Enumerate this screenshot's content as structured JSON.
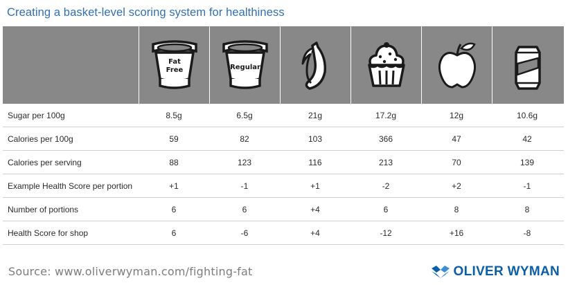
{
  "title": "Creating a basket-level scoring system for healthiness",
  "header": {
    "items": [
      {
        "icon": "fat-free-yogurt-icon",
        "text_line1": "Fat",
        "text_line2": "Free"
      },
      {
        "icon": "regular-yogurt-icon",
        "text": "Regular"
      },
      {
        "icon": "banana-icon"
      },
      {
        "icon": "cupcake-icon"
      },
      {
        "icon": "apple-icon"
      },
      {
        "icon": "soda-can-icon"
      }
    ]
  },
  "rows": [
    {
      "label": "Sugar per 100g",
      "values": [
        "8.5g",
        "6.5g",
        "21g",
        "17.2g",
        "12g",
        "10.6g"
      ]
    },
    {
      "label": "Calories per 100g",
      "values": [
        "59",
        "82",
        "103",
        "366",
        "47",
        "42"
      ]
    },
    {
      "label": "Calories per serving",
      "values": [
        "88",
        "123",
        "116",
        "213",
        "70",
        "139"
      ]
    },
    {
      "label": "Example Health Score per portion",
      "values": [
        "+1",
        "-1",
        "+1",
        "-2",
        "+2",
        "-1"
      ]
    },
    {
      "label": "Number of portions",
      "values": [
        "6",
        "6",
        "+4",
        "6",
        "8",
        "8"
      ]
    },
    {
      "label": "Health Score for shop",
      "values": [
        "6",
        "-6",
        "+4",
        "-12",
        "+16",
        "-8"
      ]
    }
  ],
  "source": "Source: www.oliverwyman.com/fighting-fat",
  "logo": {
    "text": "OLIVER WYMAN",
    "color": "#0b5fa8"
  },
  "colors": {
    "header_bg": "#888888",
    "title": "#2f6fb2",
    "icon_fill": "#ffffff",
    "icon_stroke": "#1a1a1a"
  }
}
